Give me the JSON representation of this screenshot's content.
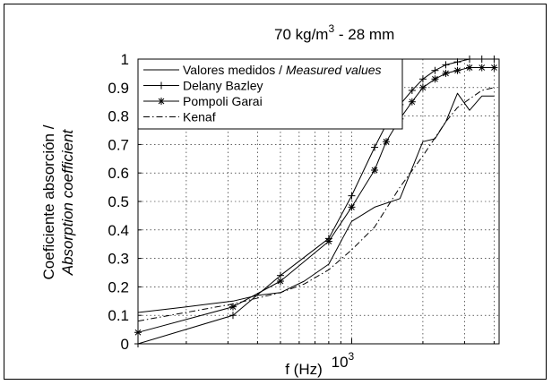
{
  "chart_data": {
    "type": "line",
    "title": "70 kg/m³ - 28 mm",
    "title_main": "70 kg/m",
    "title_sup": "3",
    "title_rest": " - 28 mm",
    "xlabel": "f (Hz)",
    "ylabel_line1": "Coeficiente absorción /",
    "ylabel_line2": "Absorption coefficient",
    "x_scale": "log",
    "xlim": [
      125,
      4200
    ],
    "ylim": [
      0,
      1
    ],
    "y_ticks": [
      0,
      0.1,
      0.2,
      0.3,
      0.4,
      0.5,
      0.6,
      0.7,
      0.8,
      0.9,
      1
    ],
    "y_tick_labels": [
      "0",
      "0.1",
      "0.2",
      "0.3",
      "0.4",
      "0.5",
      "0.6",
      "0.7",
      "0.8",
      "0.9",
      "1"
    ],
    "x_major_tick": 1000,
    "x_major_tick_label_base": "10",
    "x_major_tick_label_exp": "3",
    "x_minor_ticks": [
      200,
      300,
      400,
      500,
      600,
      700,
      800,
      900,
      2000,
      3000,
      4000
    ],
    "grid": true,
    "legend_position": "top-left",
    "legend_entries": [
      {
        "name": "Valores medidos / ",
        "name_italic": "Measured values",
        "style": "solid",
        "marker": "none"
      },
      {
        "name": "Delany Bazley",
        "name_italic": "",
        "style": "solid",
        "marker": "plus"
      },
      {
        "name": "Pompoli Garai",
        "name_italic": "",
        "style": "solid",
        "marker": "star"
      },
      {
        "name": "Kenaf",
        "name_italic": "",
        "style": "dashdot",
        "marker": "none"
      }
    ],
    "series": [
      {
        "name": "Valores medidos / Measured values",
        "style": "solid",
        "marker": "none",
        "x": [
          125,
          160,
          200,
          250,
          315,
          400,
          500,
          630,
          800,
          1000,
          1250,
          1600,
          2000,
          2250,
          2500,
          2800,
          3150,
          3550,
          4000
        ],
        "y": [
          0.11,
          0.12,
          0.13,
          0.14,
          0.15,
          0.17,
          0.18,
          0.22,
          0.28,
          0.43,
          0.48,
          0.51,
          0.71,
          0.72,
          0.78,
          0.88,
          0.82,
          0.87,
          0.87
        ]
      },
      {
        "name": "Delany Bazley",
        "style": "solid",
        "marker": "plus",
        "x": [
          125,
          315,
          500,
          800,
          1000,
          1250,
          1400,
          1600,
          1800,
          2000,
          2250,
          2500,
          2800,
          3150,
          3550,
          4000
        ],
        "y": [
          0.0,
          0.1,
          0.24,
          0.37,
          0.52,
          0.69,
          0.77,
          0.84,
          0.89,
          0.93,
          0.96,
          0.98,
          0.99,
          1.0,
          1.0,
          1.0
        ]
      },
      {
        "name": "Pompoli Garai",
        "style": "solid",
        "marker": "star",
        "x": [
          125,
          315,
          500,
          800,
          1000,
          1250,
          1400,
          1600,
          1800,
          2000,
          2250,
          2500,
          2800,
          3150,
          3550,
          4000
        ],
        "y": [
          0.04,
          0.13,
          0.22,
          0.36,
          0.48,
          0.61,
          0.71,
          0.79,
          0.85,
          0.9,
          0.93,
          0.95,
          0.96,
          0.97,
          0.97,
          0.97
        ]
      },
      {
        "name": "Kenaf",
        "style": "dashdot",
        "marker": "none",
        "x": [
          125,
          315,
          500,
          630,
          800,
          1000,
          1250,
          1600,
          2000,
          2500,
          2800,
          3150,
          3550,
          4000
        ],
        "y": [
          0.08,
          0.14,
          0.18,
          0.21,
          0.26,
          0.33,
          0.41,
          0.55,
          0.66,
          0.78,
          0.83,
          0.86,
          0.89,
          0.9
        ]
      }
    ]
  }
}
